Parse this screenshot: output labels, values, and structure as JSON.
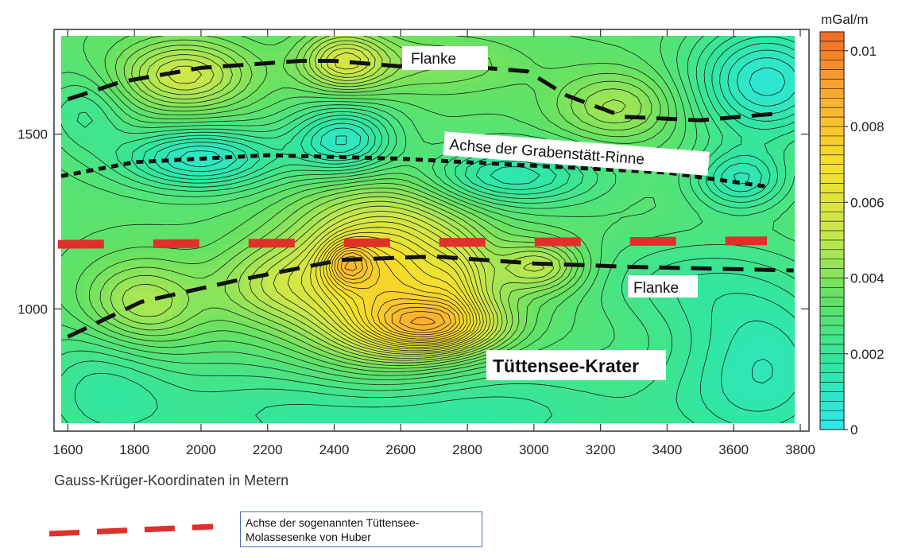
{
  "chart_data": {
    "type": "heatmap",
    "title": "",
    "xlabel": "Gauss-Krüger-Koordinaten in Metern",
    "ylabel": "",
    "xlim": [
      1580,
      3800
    ],
    "ylim": [
      650,
      1800
    ],
    "x_ticks": [
      1600,
      1800,
      2000,
      2200,
      2400,
      2600,
      2800,
      3000,
      3200,
      3400,
      3600,
      3800
    ],
    "y_ticks": [
      1000,
      1500
    ],
    "grid": false,
    "colorbar": {
      "unit": "mGal/m",
      "range": [
        0,
        0.0105
      ],
      "ticks": [
        {
          "value": 0.01,
          "label": "0.01"
        },
        {
          "value": 0.008,
          "label": "0.008"
        },
        {
          "value": 0.006,
          "label": "0.006"
        },
        {
          "value": 0.004,
          "label": "0.004"
        },
        {
          "value": 0.002,
          "label": "0.002"
        },
        {
          "value": 0,
          "label": "0"
        }
      ],
      "colors": [
        "#2ee8ee",
        "#30e6a0",
        "#63e263",
        "#cbe84a",
        "#f5e02a",
        "#fbb030",
        "#f26a24"
      ]
    },
    "background_level": 0.0032,
    "anomalies": [
      {
        "x": 1950,
        "y": 1670,
        "amp": 0.0022,
        "sx": 140,
        "sy": 70
      },
      {
        "x": 2430,
        "y": 1710,
        "amp": 0.0022,
        "sx": 90,
        "sy": 60
      },
      {
        "x": 3250,
        "y": 1580,
        "amp": 0.0014,
        "sx": 130,
        "sy": 70
      },
      {
        "x": 2700,
        "y": 1700,
        "amp": 0.0008,
        "sx": 200,
        "sy": 60
      },
      {
        "x": 2000,
        "y": 1430,
        "amp": -0.0024,
        "sx": 170,
        "sy": 60
      },
      {
        "x": 2430,
        "y": 1480,
        "amp": -0.0024,
        "sx": 110,
        "sy": 70
      },
      {
        "x": 2920,
        "y": 1380,
        "amp": -0.002,
        "sx": 190,
        "sy": 60
      },
      {
        "x": 3620,
        "y": 1370,
        "amp": -0.0018,
        "sx": 100,
        "sy": 60
      },
      {
        "x": 3700,
        "y": 1650,
        "amp": -0.0026,
        "sx": 160,
        "sy": 120
      },
      {
        "x": 1650,
        "y": 1560,
        "amp": -0.001,
        "sx": 90,
        "sy": 80
      },
      {
        "x": 2550,
        "y": 1090,
        "amp": 0.004,
        "sx": 190,
        "sy": 170
      },
      {
        "x": 2700,
        "y": 950,
        "amp": 0.0034,
        "sx": 140,
        "sy": 55
      },
      {
        "x": 2440,
        "y": 1130,
        "amp": 0.002,
        "sx": 50,
        "sy": 45
      },
      {
        "x": 2770,
        "y": 1070,
        "amp": 0.001,
        "sx": 60,
        "sy": 80
      },
      {
        "x": 3020,
        "y": 1120,
        "amp": 0.0018,
        "sx": 90,
        "sy": 50
      },
      {
        "x": 1820,
        "y": 1010,
        "amp": 0.0018,
        "sx": 130,
        "sy": 90
      },
      {
        "x": 2200,
        "y": 1070,
        "amp": 0.0012,
        "sx": 120,
        "sy": 80
      },
      {
        "x": 3400,
        "y": 1080,
        "amp": -0.0008,
        "sx": 200,
        "sy": 100
      },
      {
        "x": 2600,
        "y": 700,
        "amp": -0.0016,
        "sx": 600,
        "sy": 120
      },
      {
        "x": 3700,
        "y": 850,
        "amp": -0.0018,
        "sx": 200,
        "sy": 200
      },
      {
        "x": 1700,
        "y": 800,
        "amp": -0.001,
        "sx": 150,
        "sy": 150
      }
    ],
    "lines": [
      {
        "name": "Flanke",
        "style": "black-dashed",
        "points": [
          [
            1600,
            1600
          ],
          [
            1760,
            1650
          ],
          [
            2000,
            1690
          ],
          [
            2300,
            1710
          ],
          [
            2400,
            1710
          ],
          [
            2650,
            1690
          ],
          [
            2850,
            1690
          ],
          [
            2980,
            1680
          ],
          [
            3100,
            1610
          ],
          [
            3270,
            1550
          ],
          [
            3500,
            1540
          ],
          [
            3740,
            1560
          ]
        ]
      },
      {
        "name": "Achse der Grabenstätt-Rinne",
        "style": "black-dotted",
        "points": [
          [
            1580,
            1380
          ],
          [
            1800,
            1420
          ],
          [
            2200,
            1440
          ],
          [
            2600,
            1430
          ],
          [
            3000,
            1410
          ],
          [
            3400,
            1390
          ],
          [
            3700,
            1350
          ]
        ]
      },
      {
        "name": "Flanke",
        "style": "black-dashed",
        "points": [
          [
            1600,
            920
          ],
          [
            1820,
            1020
          ],
          [
            2100,
            1080
          ],
          [
            2420,
            1140
          ],
          [
            2700,
            1150
          ],
          [
            3000,
            1130
          ],
          [
            3300,
            1120
          ],
          [
            3780,
            1110
          ]
        ]
      },
      {
        "name": "Achse der sogenannten Tüttensee-Molassesenke von Huber",
        "style": "red-dashed",
        "points": [
          [
            1570,
            1185
          ],
          [
            3700,
            1195
          ]
        ]
      }
    ]
  },
  "annotations": {
    "flanke_top": "Flanke",
    "grabenstaett_axis": "Achse der Grabenstätt-Rinne",
    "flanke_bottom": "Flanke",
    "crater": "Tüttensee-Krater"
  },
  "legend": {
    "line1": "Achse der sogenannten Tüttensee-",
    "line2": "Molassesenke von Huber",
    "line_color": "#e0302a"
  }
}
